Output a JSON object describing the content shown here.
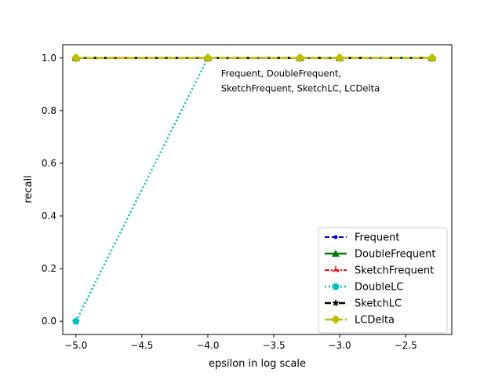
{
  "chart_data": {
    "type": "line",
    "title": "",
    "xlabel": "epsilon in log scale",
    "ylabel": "recall",
    "xlim": [
      -5.1,
      -2.15
    ],
    "ylim": [
      -0.05,
      1.05
    ],
    "xticks": [
      -5.0,
      -4.5,
      -4.0,
      -3.5,
      -3.0,
      -2.5
    ],
    "xtick_labels": [
      "−5.0",
      "−4.5",
      "−4.0",
      "−3.5",
      "−3.0",
      "−2.5"
    ],
    "yticks": [
      0.0,
      0.2,
      0.4,
      0.6,
      0.8,
      1.0
    ],
    "ytick_labels": [
      "0.0",
      "0.2",
      "0.4",
      "0.6",
      "0.8",
      "1.0"
    ],
    "grid": false,
    "legend_position": "lower-right",
    "annotation": {
      "lines": [
        "Frequent, DoubleFrequent,",
        "SketchFrequent, SketchLC, LCDelta"
      ],
      "x": -3.9,
      "y": 0.93
    },
    "x": [
      -5.0,
      -4.0,
      -3.3,
      -3.0,
      -2.3
    ],
    "series": [
      {
        "name": "Frequent",
        "values": [
          1.0,
          1.0,
          1.0,
          1.0,
          1.0
        ],
        "color": "#0000cc",
        "dash": "6,3",
        "marker": "point",
        "width": 2
      },
      {
        "name": "DoubleFrequent",
        "values": [
          1.0,
          1.0,
          1.0,
          1.0,
          1.0
        ],
        "color": "#007f00",
        "dash": "",
        "marker": "triangle",
        "width": 2.5
      },
      {
        "name": "SketchFrequent",
        "values": [
          1.0,
          1.0,
          1.0,
          1.0,
          1.0
        ],
        "color": "#ff0000",
        "dash": "6,2,2,2",
        "marker": "tri",
        "width": 2
      },
      {
        "name": "DoubleLC",
        "values": [
          0.0,
          1.0,
          1.0,
          1.0,
          1.0
        ],
        "color": "#00bfbf",
        "dash": "2,3",
        "marker": "pentagon",
        "width": 2.5
      },
      {
        "name": "SketchLC",
        "values": [
          1.0,
          1.0,
          1.0,
          1.0,
          1.0
        ],
        "color": "#000000",
        "dash": "8,4,2,4",
        "marker": "star",
        "width": 2.5
      },
      {
        "name": "LCDelta",
        "values": [
          1.0,
          1.0,
          1.0,
          1.0,
          1.0
        ],
        "color": "#bfbf00",
        "dash": "10,3",
        "marker": "diamond",
        "width": 2.5
      }
    ]
  }
}
